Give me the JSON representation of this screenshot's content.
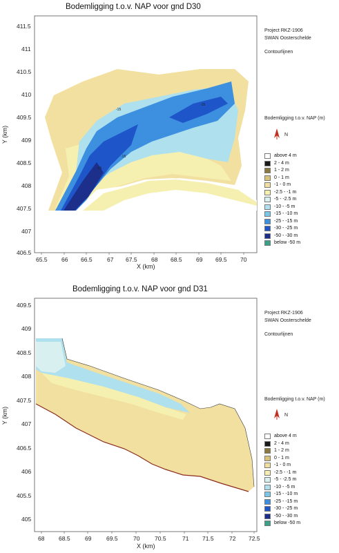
{
  "maps": [
    {
      "title": "Bodemligging t.o.v. NAP voor gnd D30",
      "xlabel": "X (km)",
      "ylabel": "Y (km)",
      "xticks": [
        "65.5",
        "66",
        "66.5",
        "67",
        "67.5",
        "68",
        "68.5",
        "69",
        "69.5",
        "70"
      ],
      "yticks": [
        "411.5",
        "411",
        "410.5",
        "410",
        "409.5",
        "409",
        "408.5",
        "408",
        "407.5",
        "407",
        "406.5"
      ],
      "project_lines": [
        "Project RKZ-1906",
        "SWAN Oosterschelde"
      ],
      "mode": "Contourlijnen",
      "legend_title": "Bodemligging t.o.v. NAP (m)",
      "north": "N",
      "legend_items": [
        "above 4 m",
        "2 - 4 m",
        "1 - 2 m",
        "0 - 1 m",
        "-1 - 0 m",
        "-2.5 - -1 m",
        "-5 - -2.5 m",
        "-10 - -5 m",
        "-15 - -10 m",
        "-25 - -15 m",
        "-30 - -25 m",
        "-50 - -30 m",
        "below -50 m"
      ],
      "contour_labels": [
        "-15",
        "-15",
        "-15",
        "-15"
      ]
    },
    {
      "title": "Bodemligging t.o.v. NAP voor gnd D31",
      "xlabel": "X (km)",
      "ylabel": "Y (km)",
      "xticks": [
        "68",
        "68.5",
        "69",
        "69.5",
        "70",
        "70.5",
        "71",
        "71.5",
        "72",
        "72.5"
      ],
      "yticks": [
        "409.5",
        "409",
        "408.5",
        "408",
        "407.5",
        "407",
        "406.5",
        "406",
        "405.5",
        "405"
      ],
      "project_lines": [
        "Project RKZ-1906",
        "SWAN Oosterschelde"
      ],
      "mode": "Contourlijnen",
      "legend_title": "Bodemligging t.o.v. NAP (m)",
      "north": "N",
      "legend_items": [
        "above 4 m",
        "2 - 4 m",
        "1 - 2 m",
        "0 - 1 m",
        "-1 - 0 m",
        "-2.5 - -1 m",
        "-5 - -2.5 m",
        "-10 - -5 m",
        "-15 - -10 m",
        "-25 - -15 m",
        "-30 - -25 m",
        "-50 - -30 m",
        "below -50 m"
      ]
    }
  ],
  "legend_colors": [
    "#ffffff",
    "#1a1a1a",
    "#8a7a40",
    "#d9c27a",
    "#f2e0a0",
    "#f5f0b0",
    "#d8f0f0",
    "#aee0ee",
    "#78c6e8",
    "#3d8fe0",
    "#1e55c8",
    "#1c2f8a",
    "#3aa08a"
  ]
}
